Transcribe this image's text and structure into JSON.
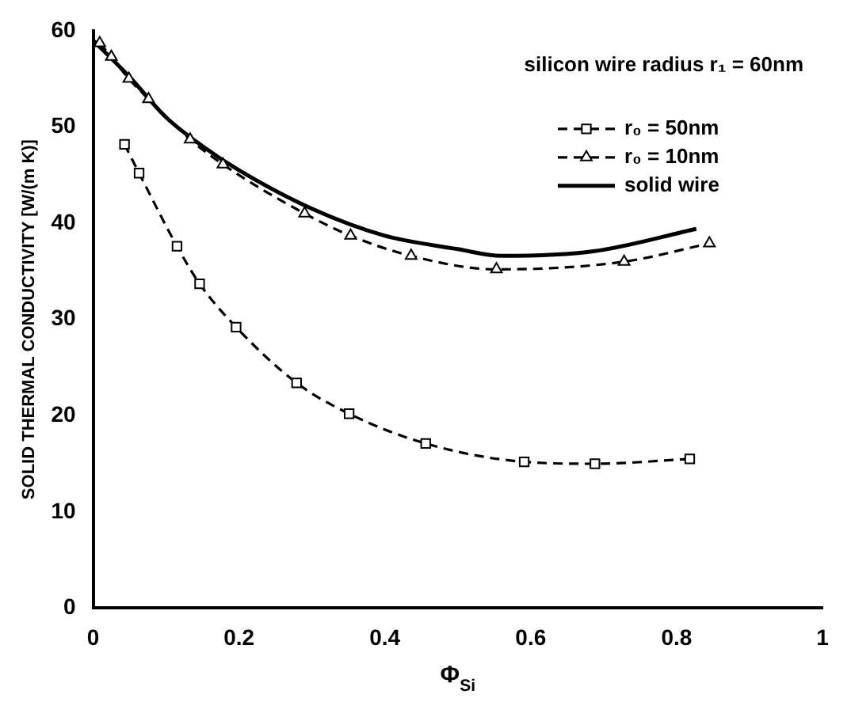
{
  "chart_data": {
    "type": "line",
    "xlabel": "Φ$_{Si}$",
    "ylabel": "SOLID THERMAL CONDUCTIVITY [W/(m K)]",
    "annotations": [
      "silicon wire radius r₁ = 60nm"
    ],
    "series": [
      {
        "name": "r₀ = 50nm",
        "color": "#000000",
        "marker": "square",
        "line_style": "dashed",
        "x": [
          0.043,
          0.063,
          0.115,
          0.146,
          0.196,
          0.279,
          0.351,
          0.456,
          0.591,
          0.688,
          0.818
        ],
        "values": [
          48.2,
          45.2,
          37.6,
          33.7,
          29.2,
          23.4,
          20.2,
          17.1,
          15.2,
          15.0,
          15.5
        ]
      },
      {
        "name": "r₀ = 10nm",
        "color": "#000000",
        "marker": "triangle",
        "line_style": "dashed",
        "x": [
          0.009,
          0.025,
          0.049,
          0.076,
          0.133,
          0.178,
          0.29,
          0.353,
          0.436,
          0.553,
          0.728,
          0.845
        ],
        "values": [
          58.7,
          57.3,
          55.0,
          52.9,
          48.7,
          46.1,
          41.0,
          38.7,
          36.6,
          35.2,
          36.0,
          37.9
        ]
      },
      {
        "name": "solid wire",
        "color": "#000000",
        "marker": "none",
        "line_style": "solid",
        "x": [
          0,
          0.05,
          0.1,
          0.15,
          0.2,
          0.3,
          0.4,
          0.5,
          0.56,
          0.688,
          0.827
        ],
        "values": [
          59,
          55.2,
          51,
          48,
          45.5,
          41.5,
          38.7,
          37.3,
          36.6,
          37.1,
          39.4
        ]
      }
    ],
    "xlim": [
      0,
      1
    ],
    "xticks": [
      0,
      0.2,
      0.4,
      0.6,
      0.8,
      1
    ],
    "ylim": [
      0,
      60
    ],
    "yticks": [
      0,
      10,
      20,
      30,
      40,
      50,
      60
    ],
    "grid": false,
    "legend": "top right"
  }
}
